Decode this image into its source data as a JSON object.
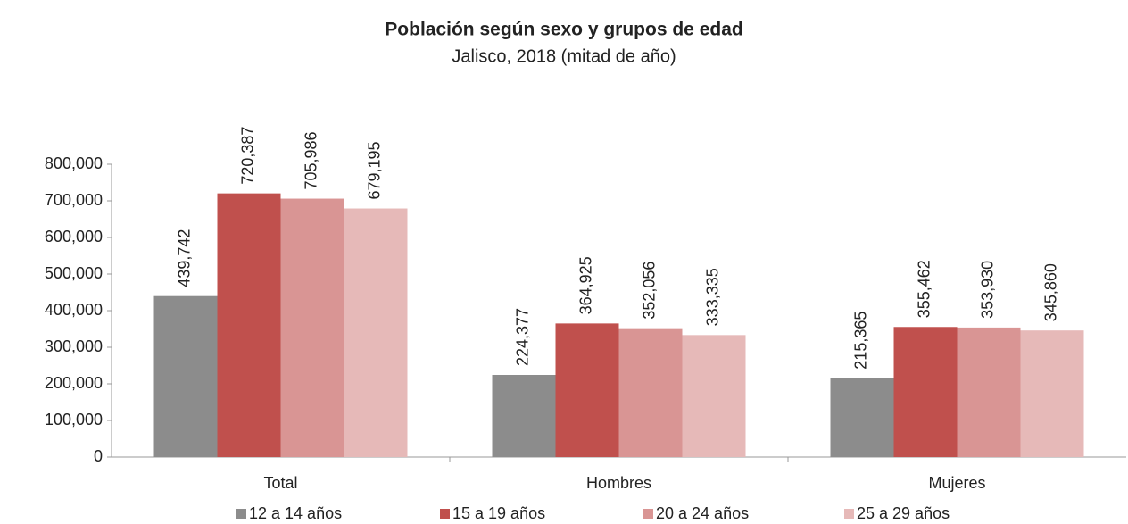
{
  "chart_data": {
    "type": "bar",
    "title": "Población según sexo y grupos de edad",
    "subtitle": "Jalisco, 2018 (mitad de año)",
    "categories": [
      "Total",
      "Hombres",
      "Mujeres"
    ],
    "series": [
      {
        "name": "12 a 14 años",
        "color": "#8c8c8c",
        "values": [
          439742,
          224377,
          215365
        ],
        "value_labels": [
          "439,742",
          "224,377",
          "215,365"
        ]
      },
      {
        "name": "15 a 19 años",
        "color": "#c0504d",
        "values": [
          720387,
          364925,
          355462
        ],
        "value_labels": [
          "720,387",
          "364,925",
          "355,462"
        ]
      },
      {
        "name": "20 a 24 años",
        "color": "#d99594",
        "values": [
          705986,
          352056,
          353930
        ],
        "value_labels": [
          "705,986",
          "352,056",
          "353,930"
        ]
      },
      {
        "name": "25 a 29 años",
        "color": "#e6b9b8",
        "values": [
          679195,
          333335,
          345860
        ],
        "value_labels": [
          "679,195",
          "333,335",
          "345,860"
        ]
      }
    ],
    "ylim": [
      0,
      800000
    ],
    "yticks": [
      0,
      {
        "value": 100000,
        "label": "100,000"
      },
      {
        "value": 200000,
        "label": "200,000"
      },
      {
        "value": 300000,
        "label": "300,000"
      },
      {
        "value": 400000,
        "label": "400,000"
      },
      {
        "value": 500000,
        "label": "500,000"
      },
      {
        "value": 600000,
        "label": "600,000"
      },
      {
        "value": 700000,
        "label": "700,000"
      },
      {
        "value": 800000,
        "label": "800,000"
      }
    ],
    "legend": "bottom"
  }
}
